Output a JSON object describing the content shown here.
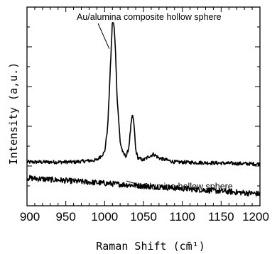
{
  "chart_data": {
    "type": "line",
    "title": "",
    "xlabel": "Raman Shift (cm̄¹)",
    "ylabel": "Intensity (a,u.)",
    "xlim": [
      900,
      1200
    ],
    "ylim": [
      0,
      10
    ],
    "x_ticks": [
      900,
      950,
      1000,
      1050,
      1100,
      1150,
      1200
    ],
    "y_ticks_labeled": false,
    "grid": false,
    "legend": "none",
    "series": [
      {
        "key": "composite",
        "name": "Au/alumina composite hollow sphere",
        "x": [
          900,
          960,
          990,
          1000,
          1004,
          1008,
          1010,
          1012,
          1014,
          1016,
          1020,
          1024,
          1028,
          1031,
          1034,
          1036,
          1038,
          1040,
          1043,
          1050,
          1058,
          1063,
          1070,
          1090,
          1200
        ],
        "y": [
          2.2,
          2.2,
          2.3,
          2.7,
          4.0,
          7.5,
          9.3,
          9.1,
          7.8,
          5.5,
          3.2,
          2.6,
          2.5,
          2.9,
          4.1,
          4.6,
          4.0,
          2.8,
          2.4,
          2.3,
          2.5,
          2.6,
          2.4,
          2.2,
          2.1
        ]
      },
      {
        "key": "alumina",
        "name": "Alumina hollow sphere",
        "x": [
          900,
          1200
        ],
        "y": [
          1.4,
          0.6
        ]
      }
    ],
    "annotations": [
      {
        "text": "Au/alumina composite hollow sphere",
        "target_series": "composite"
      },
      {
        "text": "Alumina hollow sphere",
        "target_series": "alumina"
      }
    ]
  }
}
